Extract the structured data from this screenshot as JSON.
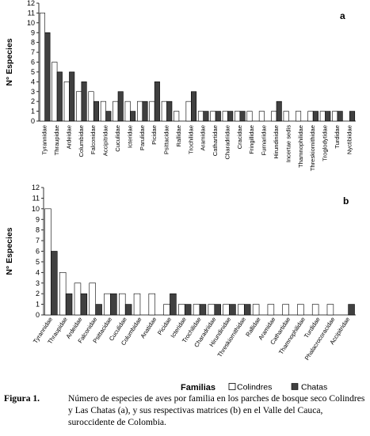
{
  "chart_data": [
    {
      "type": "bar",
      "panel_label": "a",
      "ylabel": "N° Especies",
      "ylim": [
        0,
        12
      ],
      "yticks": [
        "0",
        "1",
        "2",
        "3",
        "4",
        "5",
        "6",
        "7",
        "8",
        "9",
        "10",
        "11",
        "12"
      ],
      "categories": [
        "Tyrannidae",
        "Thraupidae",
        "Ardeidae",
        "Columbidae",
        "Falconidae",
        "Accipitridae",
        "Cuculidae",
        "Icteridae",
        "Parulidae",
        "Picidae",
        "Psittacidae",
        "Rallidae",
        "Trochilidae",
        "Aramidae",
        "Cathartidae",
        "Charadriidae",
        "Cracidae",
        "Fringillidae",
        "Furnariidae",
        "Hirundinidae",
        "Incertae sedis",
        "Thamnophilidae",
        "Threskiornithidae",
        "Troglodytidae",
        "Turdidae",
        "Nyctibiidae"
      ],
      "series": [
        {
          "name": "Colindres",
          "values": [
            11,
            6,
            4,
            3,
            3,
            2,
            2,
            2,
            2,
            2,
            2,
            1,
            2,
            1,
            1,
            1,
            1,
            1,
            1,
            1,
            1,
            1,
            1,
            1,
            1,
            0
          ]
        },
        {
          "name": "Chatas",
          "values": [
            9,
            5,
            5,
            4,
            2,
            1,
            3,
            1,
            2,
            4,
            2,
            0,
            3,
            1,
            1,
            1,
            1,
            0,
            0,
            2,
            0,
            0,
            1,
            1,
            1,
            1
          ]
        }
      ]
    },
    {
      "type": "bar",
      "panel_label": "b",
      "ylabel": "N° Especies",
      "xlabel": "Familias",
      "ylim": [
        0,
        12
      ],
      "yticks": [
        "0",
        "1",
        "2",
        "3",
        "4",
        "5",
        "6",
        "7",
        "8",
        "9",
        "10",
        "11",
        "12"
      ],
      "categories": [
        "Tyrannidae",
        "Thraupidae",
        "Ardeidae",
        "Falconidae",
        "Psittacidae",
        "Cuculidae",
        "Columbidae",
        "Anatidae",
        "Picidae",
        "Icteridae",
        "Trochilidae",
        "Charadriidae",
        "Hirundinidae",
        "Threskiornithidae",
        "Rallidae",
        "Aramidae",
        "Cathartidae",
        "Thamnophilidae",
        "Turdidae",
        "Phalacrocoracidae",
        "Accipitridae"
      ],
      "series": [
        {
          "name": "Colindres",
          "values": [
            10,
            4,
            3,
            3,
            2,
            2,
            2,
            2,
            1,
            1,
            1,
            1,
            1,
            1,
            1,
            1,
            1,
            1,
            1,
            1,
            0
          ]
        },
        {
          "name": "Chatas",
          "values": [
            6,
            2,
            2,
            1,
            2,
            1,
            0,
            0,
            2,
            1,
            1,
            1,
            1,
            1,
            0,
            0,
            0,
            0,
            0,
            0,
            1
          ]
        }
      ]
    }
  ],
  "legend": {
    "title": "Familias",
    "items": [
      {
        "label": "Colindres",
        "color": "#ffffff"
      },
      {
        "label": "Chatas",
        "color": "#404040"
      }
    ]
  },
  "caption": {
    "figure_label": "Figura 1.",
    "text": "Número de especies de aves por familia en los parches de bosque seco Colindres y Las Chatas (a), y sus respectivas matrices (b) en el Valle del Cauca, suroccidente de Colombia."
  }
}
